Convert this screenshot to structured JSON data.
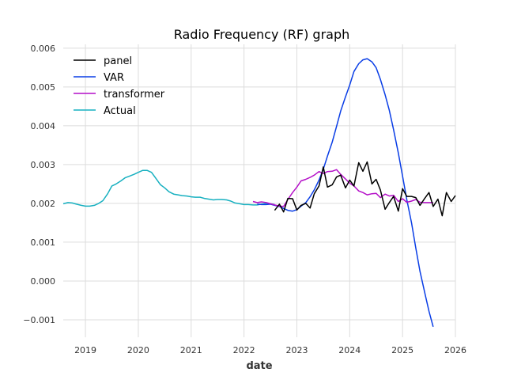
{
  "chart_data": {
    "type": "line",
    "title": "Radio Frequency (RF) graph",
    "xlabel": "date",
    "ylabel": "",
    "xlim": [
      2018.58,
      2026.0
    ],
    "ylim": [
      -0.00145,
      0.0061
    ],
    "x_ticks": [
      2019,
      2020,
      2021,
      2022,
      2023,
      2024,
      2025,
      2026
    ],
    "x_tick_labels": [
      "2019",
      "2020",
      "2021",
      "2022",
      "2023",
      "2024",
      "2025",
      "2026"
    ],
    "y_ticks": [
      -0.001,
      0.0,
      0.001,
      0.002,
      0.003,
      0.004,
      0.005,
      0.006
    ],
    "y_tick_labels": [
      "−0.001",
      "0.000",
      "0.001",
      "0.002",
      "0.003",
      "0.004",
      "0.005",
      "0.006"
    ],
    "grid": true,
    "legend_position": "top-left",
    "series": [
      {
        "name": "panel",
        "color": "#000000",
        "x": [
          2022.58,
          2022.67,
          2022.75,
          2022.83,
          2022.92,
          2023.0,
          2023.08,
          2023.17,
          2023.25,
          2023.33,
          2023.42,
          2023.5,
          2023.58,
          2023.67,
          2023.75,
          2023.83,
          2023.92,
          2024.0,
          2024.08,
          2024.17,
          2024.25,
          2024.33,
          2024.42,
          2024.5,
          2024.58,
          2024.67,
          2024.75,
          2024.83,
          2024.92,
          2025.0,
          2025.08,
          2025.17,
          2025.25,
          2025.33,
          2025.42,
          2025.5,
          2025.58,
          2025.67,
          2025.75,
          2025.83,
          2025.92,
          2026.0
        ],
        "y": [
          0.00182,
          0.00198,
          0.00178,
          0.00213,
          0.00212,
          0.00183,
          0.00195,
          0.002,
          0.00188,
          0.00225,
          0.00245,
          0.00294,
          0.00242,
          0.00248,
          0.00268,
          0.00273,
          0.0024,
          0.0026,
          0.00245,
          0.00305,
          0.00283,
          0.00307,
          0.0025,
          0.00262,
          0.00235,
          0.00185,
          0.00202,
          0.00218,
          0.0018,
          0.00238,
          0.00218,
          0.00218,
          0.00215,
          0.00195,
          0.00213,
          0.00228,
          0.00192,
          0.00211,
          0.00168,
          0.00228,
          0.00205,
          0.0022
        ]
      },
      {
        "name": "VAR",
        "color": "#0a3ee6",
        "x": [
          2022.25,
          2022.33,
          2022.42,
          2022.5,
          2022.58,
          2022.67,
          2022.75,
          2022.83,
          2022.92,
          2023.0,
          2023.08,
          2023.17,
          2023.25,
          2023.33,
          2023.42,
          2023.5,
          2023.58,
          2023.67,
          2023.75,
          2023.83,
          2023.92,
          2024.0,
          2024.08,
          2024.17,
          2024.25,
          2024.33,
          2024.42,
          2024.5,
          2024.58,
          2024.67,
          2024.75,
          2024.83,
          2024.92,
          2025.0,
          2025.08,
          2025.17,
          2025.25,
          2025.33,
          2025.42,
          2025.5,
          2025.58
        ],
        "y": [
          0.00198,
          0.00197,
          0.00197,
          0.00198,
          0.00195,
          0.00192,
          0.00187,
          0.00182,
          0.0018,
          0.00184,
          0.00193,
          0.00202,
          0.00217,
          0.00235,
          0.0026,
          0.00288,
          0.00322,
          0.00358,
          0.00398,
          0.00438,
          0.00475,
          0.00505,
          0.0054,
          0.0056,
          0.0057,
          0.00573,
          0.00565,
          0.0055,
          0.0052,
          0.0048,
          0.0044,
          0.0039,
          0.0033,
          0.0027,
          0.0021,
          0.0015,
          0.00085,
          0.00025,
          -0.0003,
          -0.00078,
          -0.00118
        ]
      },
      {
        "name": "transformer",
        "color": "#b40fc8",
        "x": [
          2022.17,
          2022.25,
          2022.33,
          2022.42,
          2022.5,
          2022.58,
          2022.67,
          2022.75,
          2022.83,
          2022.92,
          2023.0,
          2023.08,
          2023.17,
          2023.25,
          2023.33,
          2023.42,
          2023.5,
          2023.58,
          2023.67,
          2023.75,
          2023.83,
          2023.92,
          2024.0,
          2024.08,
          2024.17,
          2024.25,
          2024.33,
          2024.42,
          2024.5,
          2024.58,
          2024.67,
          2024.75,
          2024.83,
          2024.92,
          2025.0,
          2025.08,
          2025.17,
          2025.25,
          2025.33,
          2025.42,
          2025.5,
          2025.58
        ],
        "y": [
          0.00205,
          0.00202,
          0.00204,
          0.00202,
          0.00199,
          0.00196,
          0.00193,
          0.00192,
          0.0021,
          0.00228,
          0.00242,
          0.00258,
          0.00262,
          0.00267,
          0.00273,
          0.00282,
          0.00277,
          0.00282,
          0.00283,
          0.00287,
          0.00275,
          0.00263,
          0.00252,
          0.00245,
          0.00232,
          0.00228,
          0.00222,
          0.00225,
          0.00226,
          0.00215,
          0.00224,
          0.00219,
          0.00221,
          0.00205,
          0.00212,
          0.00203,
          0.00206,
          0.0021,
          0.00203,
          0.00202,
          0.00202,
          0.00202
        ]
      },
      {
        "name": "Actual",
        "color": "#17b0c0",
        "x": [
          2018.58,
          2018.67,
          2018.75,
          2018.83,
          2018.92,
          2019.0,
          2019.08,
          2019.17,
          2019.25,
          2019.33,
          2019.42,
          2019.5,
          2019.58,
          2019.67,
          2019.75,
          2019.83,
          2019.92,
          2020.0,
          2020.08,
          2020.17,
          2020.25,
          2020.33,
          2020.42,
          2020.5,
          2020.58,
          2020.67,
          2020.75,
          2020.83,
          2020.92,
          2021.0,
          2021.08,
          2021.17,
          2021.25,
          2021.33,
          2021.42,
          2021.5,
          2021.58,
          2021.67,
          2021.75,
          2021.83,
          2021.92,
          2022.0,
          2022.08,
          2022.17,
          2022.25,
          2022.33,
          2022.42,
          2022.5,
          2022.58
        ],
        "y": [
          0.00199,
          0.00202,
          0.00201,
          0.00198,
          0.00195,
          0.00193,
          0.00193,
          0.00195,
          0.002,
          0.00207,
          0.00225,
          0.00245,
          0.0025,
          0.00258,
          0.00266,
          0.0027,
          0.00275,
          0.0028,
          0.00285,
          0.00285,
          0.0028,
          0.00265,
          0.00248,
          0.0024,
          0.0023,
          0.00224,
          0.00222,
          0.0022,
          0.00219,
          0.00217,
          0.00216,
          0.00216,
          0.00213,
          0.00211,
          0.00209,
          0.0021,
          0.0021,
          0.00209,
          0.00206,
          0.00201,
          0.00199,
          0.00197,
          0.00197,
          0.00196,
          0.00196,
          0.00198,
          0.002,
          0.00199,
          0.00197
        ]
      }
    ]
  }
}
